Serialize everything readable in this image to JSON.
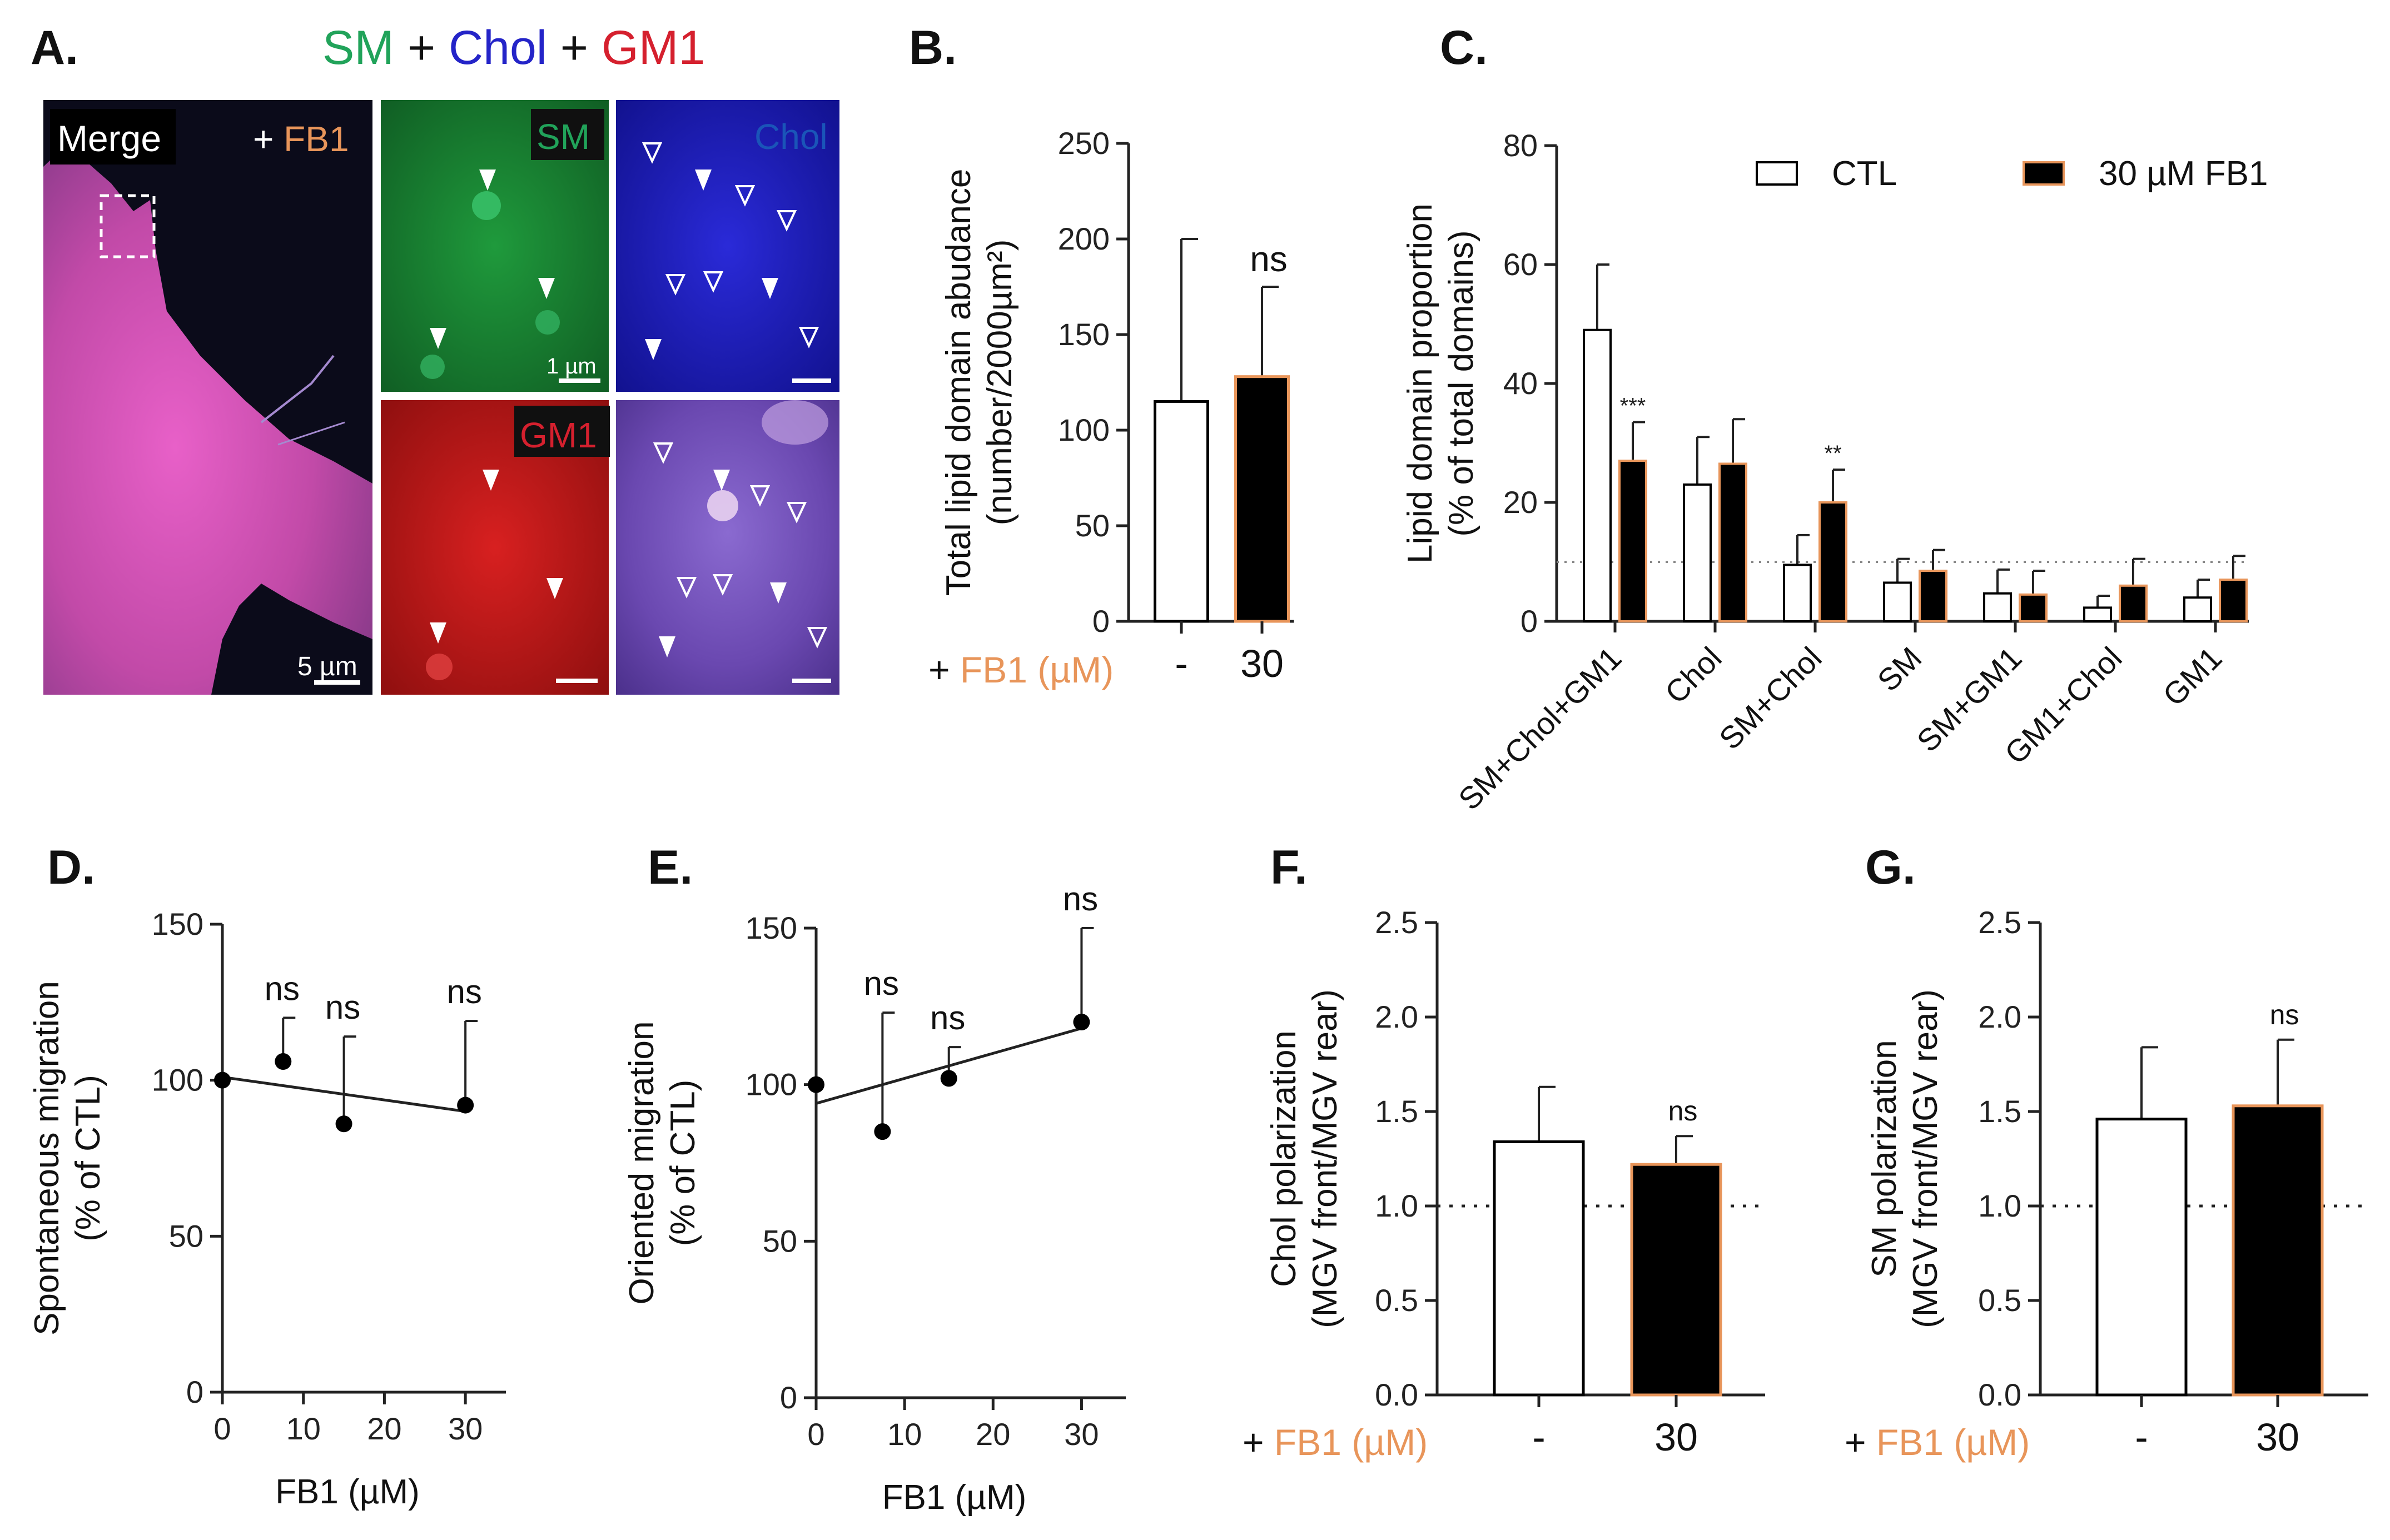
{
  "figure": {
    "colors": {
      "sm": "#21a35a",
      "chol": "#2424c8",
      "gm1": "#d5202e",
      "fb1": "#e8955a",
      "black": "#000000",
      "white": "#ffffff"
    }
  },
  "panelA": {
    "label": "A.",
    "title": {
      "sm": "SM",
      "plus1": " + ",
      "chol": "Chol",
      "plus2": " + ",
      "gm1": "GM1"
    },
    "merge_label": "Merge",
    "fb1_prefix": "+ ",
    "fb1_label": "FB1",
    "sm_label": "SM",
    "chol_label": "Chol",
    "gm1_label": "GM1",
    "scale_5um": "5 µm",
    "scale_1um": "1 µm"
  },
  "panelB": {
    "label": "B.",
    "xprefix": "+ ",
    "xlabel_fb1": "FB1 (µM)"
  },
  "panelC": {
    "label": "C.",
    "legend_ctl": "CTL",
    "legend_fb1": "30 µM FB1"
  },
  "panelD": {
    "label": "D."
  },
  "panelE": {
    "label": "E."
  },
  "panelF": {
    "label": "F.",
    "xprefix": "+ ",
    "xlabel_fb1": "FB1 (µM)"
  },
  "panelG": {
    "label": "G.",
    "xprefix": "+ ",
    "xlabel_fb1": "FB1 (µM)"
  },
  "chart_data": [
    {
      "id": "B",
      "type": "bar",
      "ylabel_line1": "Total lipid domain abudance",
      "ylabel_line2": "(number/2000µm²)",
      "ylim": [
        0,
        250
      ],
      "yticks": [
        "0",
        "50",
        "100",
        "150",
        "200",
        "250"
      ],
      "categories": [
        "-",
        "30"
      ],
      "values": [
        115,
        128
      ],
      "errors": [
        85,
        47
      ],
      "fills": [
        "white",
        "black"
      ],
      "annotations": [
        "",
        "ns"
      ]
    },
    {
      "id": "C",
      "type": "bar",
      "ylabel_line1": "Lipid domain proportion",
      "ylabel_line2": "(% of total domains)",
      "ylim": [
        0,
        80
      ],
      "yticks": [
        "0",
        "20",
        "40",
        "60",
        "80"
      ],
      "reference_line": 10,
      "categories": [
        "SM+Chol+GM1",
        "Chol",
        "SM+Chol",
        "SM",
        "SM+GM1",
        "GM1+Chol",
        "GM1"
      ],
      "series": [
        {
          "name": "CTL",
          "values": [
            49,
            23,
            9.5,
            6.5,
            4.7,
            2.3,
            4
          ],
          "errors": [
            11,
            8,
            5,
            4,
            4,
            2,
            3
          ]
        },
        {
          "name": "30 µM FB1",
          "values": [
            27,
            26.5,
            20,
            8.5,
            4.5,
            6,
            7
          ],
          "errors": [
            6.5,
            7.5,
            5.5,
            3.5,
            4,
            4.5,
            4
          ]
        }
      ],
      "annotations": [
        {
          "category": "SM+Chol+GM1",
          "series": "30 µM FB1",
          "text": "***"
        },
        {
          "category": "SM+Chol",
          "series": "30 µM FB1",
          "text": "**"
        }
      ]
    },
    {
      "id": "D",
      "type": "scatter",
      "ylabel_line1": "Spontaneous migration",
      "ylabel_line2": "(% of CTL)",
      "xlabel": "FB1 (µM)",
      "xlim": [
        0,
        35
      ],
      "ylim": [
        0,
        150
      ],
      "xticks": [
        "0",
        "10",
        "20",
        "30"
      ],
      "yticks": [
        "0",
        "50",
        "100",
        "150"
      ],
      "x": [
        0,
        7.5,
        15,
        30
      ],
      "y": [
        100,
        106,
        86,
        92
      ],
      "errors": [
        0,
        14,
        28,
        27
      ],
      "fit_line": [
        [
          0,
          101
        ],
        [
          30,
          90
        ]
      ],
      "annotations": [
        "",
        "ns",
        "ns",
        "ns"
      ]
    },
    {
      "id": "E",
      "type": "scatter",
      "ylabel_line1": "Oriented migration",
      "ylabel_line2": "(% of  CTL)",
      "xlabel": "FB1 (µM)",
      "xlim": [
        0,
        35
      ],
      "ylim": [
        0,
        150
      ],
      "xticks": [
        "0",
        "10",
        "20",
        "30"
      ],
      "yticks": [
        "0",
        "50",
        "100",
        "150"
      ],
      "x": [
        0,
        7.5,
        15,
        30
      ],
      "y": [
        100,
        85,
        102,
        120
      ],
      "errors": [
        0,
        38,
        10,
        30
      ],
      "fit_line": [
        [
          0,
          94
        ],
        [
          30,
          118
        ]
      ],
      "annotations": [
        "",
        "ns",
        "ns",
        "ns"
      ]
    },
    {
      "id": "F",
      "type": "bar",
      "ylabel_line1": "Chol polarization",
      "ylabel_line2": "(MGV front/MGV rear)",
      "ylim": [
        0,
        2.5
      ],
      "yticks": [
        "0.0",
        "0.5",
        "1.0",
        "1.5",
        "2.0",
        "2.5"
      ],
      "reference_line": 1.0,
      "categories": [
        "-",
        "30"
      ],
      "values": [
        1.34,
        1.22
      ],
      "errors": [
        0.29,
        0.15
      ],
      "fills": [
        "white",
        "black"
      ],
      "annotations": [
        "",
        "ns"
      ]
    },
    {
      "id": "G",
      "type": "bar",
      "ylabel_line1": "SM polarization",
      "ylabel_line2": "(MGV front/MGV rear)",
      "ylim": [
        0,
        2.5
      ],
      "yticks": [
        "0.0",
        "0.5",
        "1.0",
        "1.5",
        "2.0",
        "2.5"
      ],
      "reference_line": 1.0,
      "categories": [
        "-",
        "30"
      ],
      "values": [
        1.46,
        1.53
      ],
      "errors": [
        0.38,
        0.35
      ],
      "fills": [
        "white",
        "black"
      ],
      "annotations": [
        "",
        "ns"
      ]
    }
  ]
}
